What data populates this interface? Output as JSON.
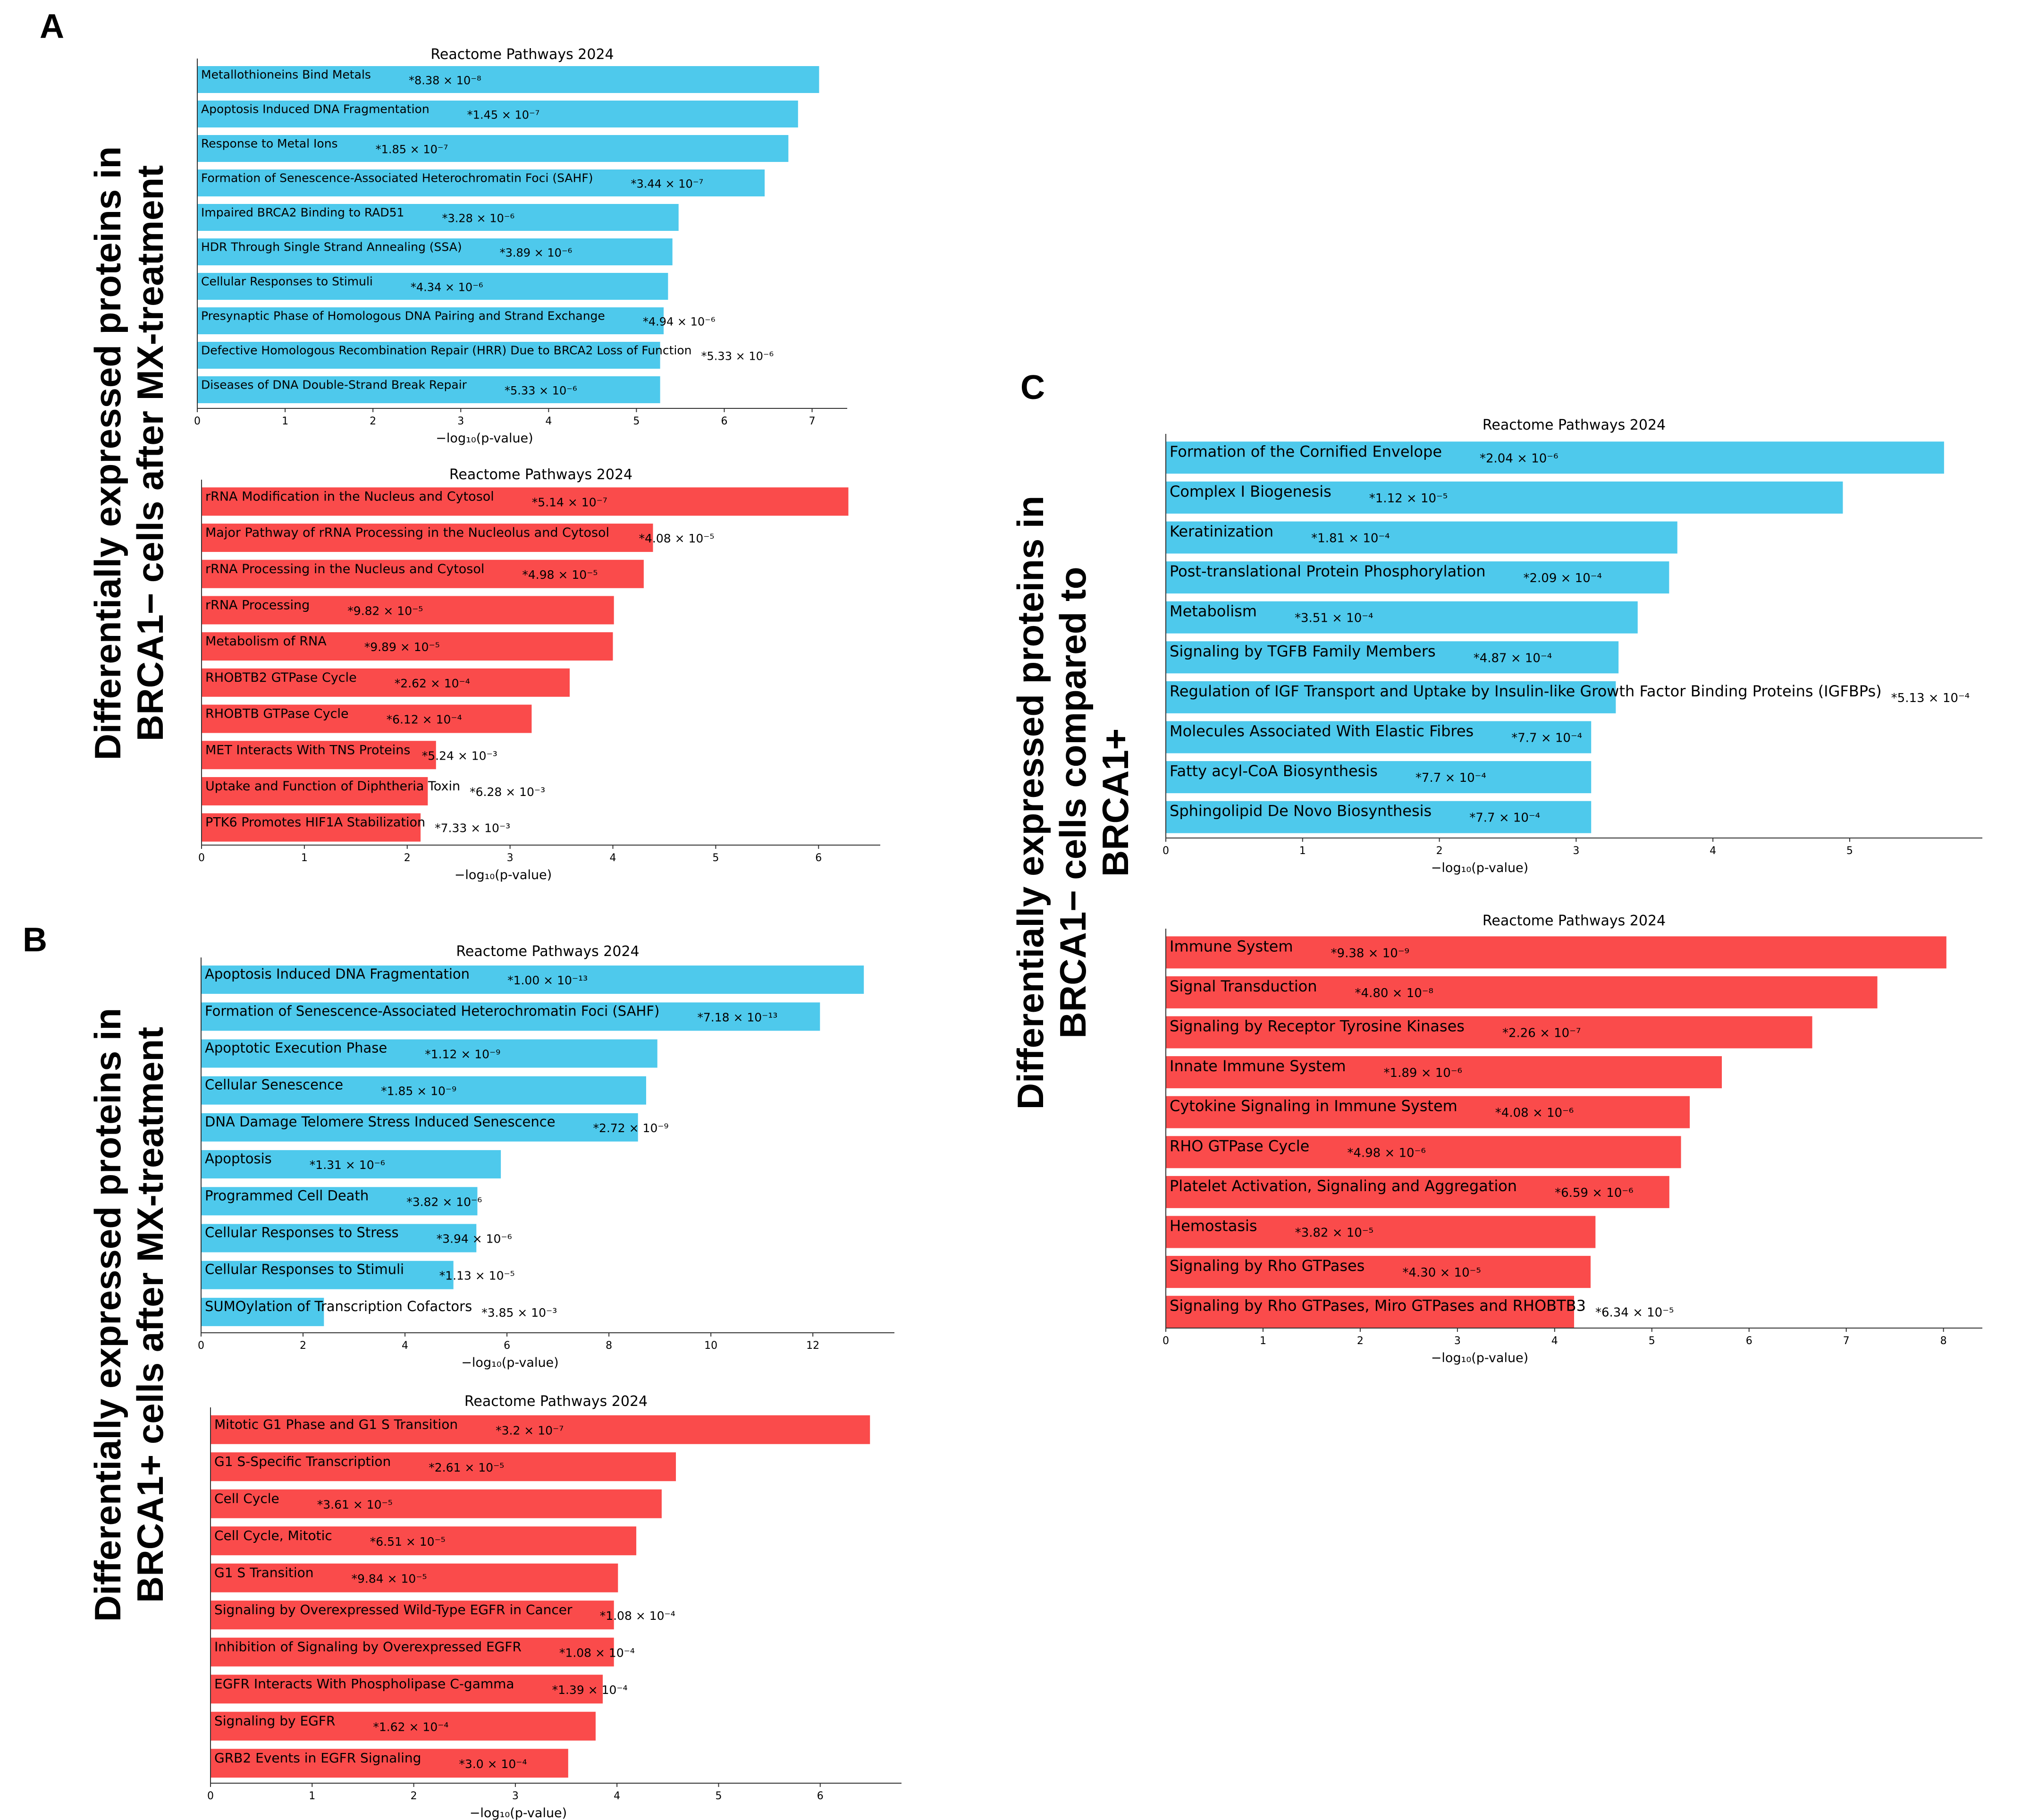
{
  "figure": {
    "panel_labels": [
      "A",
      "B",
      "C"
    ],
    "side_labels": {
      "A": [
        "Differentially expressed proteins in",
        "BRCA1− cells after MX-treatment"
      ],
      "B": [
        "Differentially expressed proteins in",
        "BRCA1+ cells after MX-treatment"
      ],
      "C": [
        "Differentially expressed proteins in",
        "BRCA1− cells compared to",
        "BRCA1+"
      ]
    }
  },
  "colors": {
    "up": "#4ec9ec",
    "down": "#fa4b4b",
    "axis": "#333333"
  },
  "chart_data": [
    {
      "id": "A-up",
      "type": "bar",
      "orientation": "horizontal",
      "title": "Reactome Pathways 2024",
      "xlabel": "−log₁₀(p-value)",
      "xlim": [
        0,
        7.4
      ],
      "xticks": [
        0,
        1,
        2,
        3,
        4,
        5,
        6,
        7
      ],
      "color": "up",
      "categories": [
        "Metallothioneins Bind Metals",
        "Apoptosis Induced DNA Fragmentation",
        "Response to Metal Ions",
        "Formation of Senescence-Associated Heterochromatin Foci (SAHF)",
        "Impaired BRCA2 Binding to RAD51",
        "HDR Through Single Strand Annealing (SSA)",
        "Cellular Responses to Stimuli",
        "Presynaptic Phase of Homologous DNA Pairing and Strand Exchange",
        "Defective Homologous Recombination Repair (HRR) Due to BRCA2 Loss of Function",
        "Diseases of DNA Double-Strand Break Repair"
      ],
      "values": [
        7.08,
        6.84,
        6.73,
        6.46,
        5.48,
        5.41,
        5.36,
        5.31,
        5.27,
        5.27
      ],
      "pvalues": [
        "*8.38 × 10⁻⁸",
        "*1.45 × 10⁻⁷",
        "*1.85 × 10⁻⁷",
        "*3.44 × 10⁻⁷",
        "*3.28 × 10⁻⁶",
        "*3.89 × 10⁻⁶",
        "*4.34 × 10⁻⁶",
        "*4.94 × 10⁻⁶",
        "*5.33 × 10⁻⁶",
        "*5.33 × 10⁻⁶"
      ]
    },
    {
      "id": "A-down",
      "type": "bar",
      "orientation": "horizontal",
      "title": "Reactome Pathways 2024",
      "xlabel": "−log₁₀(p-value)",
      "xlim": [
        0,
        6.6
      ],
      "xticks": [
        0,
        1,
        2,
        3,
        4,
        5,
        6
      ],
      "color": "down",
      "categories": [
        "rRNA Modification in the Nucleus and Cytosol",
        "Major Pathway of rRNA Processing in the Nucleolus and Cytosol",
        "rRNA Processing in the Nucleus and Cytosol",
        "rRNA Processing",
        "Metabolism of RNA",
        "RHOBTB2 GTPase Cycle",
        "RHOBTB GTPase Cycle",
        "MET Interacts With TNS Proteins",
        "Uptake and Function of Diphtheria Toxin",
        "PTK6 Promotes HIF1A Stabilization"
      ],
      "values": [
        6.29,
        4.39,
        4.3,
        4.01,
        4.0,
        3.58,
        3.21,
        2.28,
        2.2,
        2.13
      ],
      "pvalues": [
        "*5.14 × 10⁻⁷",
        "*4.08 × 10⁻⁵",
        "*4.98 × 10⁻⁵",
        "*9.82 × 10⁻⁵",
        "*9.89 × 10⁻⁵",
        "*2.62 × 10⁻⁴",
        "*6.12 × 10⁻⁴",
        "*5.24 × 10⁻³",
        "*6.28 × 10⁻³",
        "*7.33 × 10⁻³"
      ]
    },
    {
      "id": "B-up",
      "type": "bar",
      "orientation": "horizontal",
      "title": "Reactome Pathways 2024",
      "xlabel": "−log₁₀(p-value)",
      "xlim": [
        0,
        13.6
      ],
      "xticks": [
        0,
        2,
        4,
        6,
        8,
        10,
        12
      ],
      "color": "up",
      "categories": [
        "Apoptosis Induced DNA Fragmentation",
        "Formation of Senescence-Associated Heterochromatin Foci (SAHF)",
        "Apoptotic Execution Phase",
        "Cellular Senescence",
        "DNA Damage Telomere Stress Induced Senescence",
        "Apoptosis",
        "Programmed Cell Death",
        "Cellular Responses to Stress",
        "Cellular Responses to Stimuli",
        "SUMOylation of Transcription Cofactors"
      ],
      "values": [
        13.0,
        12.14,
        8.95,
        8.73,
        8.57,
        5.88,
        5.42,
        5.4,
        4.95,
        2.41
      ],
      "pvalues": [
        "*1.00 × 10⁻¹³",
        "*7.18 × 10⁻¹³",
        "*1.12 × 10⁻⁹",
        "*1.85 × 10⁻⁹",
        "*2.72 × 10⁻⁹",
        "*1.31 × 10⁻⁶",
        "*3.82 × 10⁻⁶",
        "*3.94 × 10⁻⁶",
        "*1.13 × 10⁻⁵",
        "*3.85 × 10⁻³"
      ]
    },
    {
      "id": "B-down",
      "type": "bar",
      "orientation": "horizontal",
      "title": "Reactome Pathways 2024",
      "xlabel": "−log₁₀(p-value)",
      "xlim": [
        0,
        6.8
      ],
      "xticks": [
        0,
        1,
        2,
        3,
        4,
        5,
        6
      ],
      "color": "down",
      "categories": [
        "Mitotic G1 Phase and G1 S Transition",
        "G1 S-Specific Transcription",
        "Cell Cycle",
        "Cell Cycle, Mitotic",
        "G1 S Transition",
        "Signaling by Overexpressed Wild-Type EGFR in Cancer",
        "Inhibition of Signaling by Overexpressed EGFR",
        "EGFR Interacts With Phospholipase C-gamma",
        "Signaling by EGFR",
        "GRB2 Events in EGFR Signaling"
      ],
      "values": [
        6.49,
        4.58,
        4.44,
        4.19,
        4.01,
        3.97,
        3.97,
        3.86,
        3.79,
        3.52
      ],
      "pvalues": [
        "*3.2 × 10⁻⁷",
        "*2.61 × 10⁻⁵",
        "*3.61 × 10⁻⁵",
        "*6.51 × 10⁻⁵",
        "*9.84 × 10⁻⁵",
        "*1.08 × 10⁻⁴",
        "*1.08 × 10⁻⁴",
        "*1.39 × 10⁻⁴",
        "*1.62 × 10⁻⁴",
        "*3.0 × 10⁻⁴"
      ]
    },
    {
      "id": "C-up",
      "type": "bar",
      "orientation": "horizontal",
      "title": "Reactome Pathways 2024",
      "xlabel": "−log₁₀(p-value)",
      "xlim": [
        0,
        5.97
      ],
      "xticks": [
        0,
        1,
        2,
        3,
        4,
        5
      ],
      "color": "up",
      "categories": [
        "Formation of the Cornified Envelope",
        "Complex I Biogenesis",
        "Keratinization",
        "Post-translational Protein Phosphorylation",
        "Metabolism",
        "Signaling by TGFB Family Members",
        "Regulation of IGF Transport and Uptake by Insulin-like Growth Factor Binding Proteins (IGFBPs)",
        "Molecules Associated With Elastic Fibres",
        "Fatty acyl-CoA Biosynthesis",
        "Sphingolipid De Novo Biosynthesis"
      ],
      "values": [
        5.69,
        4.95,
        3.74,
        3.68,
        3.45,
        3.31,
        3.29,
        3.11,
        3.11,
        3.11
      ],
      "pvalues": [
        "*2.04 × 10⁻⁶",
        "*1.12 × 10⁻⁵",
        "*1.81 × 10⁻⁴",
        "*2.09 × 10⁻⁴",
        "*3.51 × 10⁻⁴",
        "*4.87 × 10⁻⁴",
        "*5.13 × 10⁻⁴",
        "*7.7 × 10⁻⁴",
        "*7.7 × 10⁻⁴",
        "*7.7 × 10⁻⁴"
      ]
    },
    {
      "id": "C-down",
      "type": "bar",
      "orientation": "horizontal",
      "title": "Reactome Pathways 2024",
      "xlabel": "−log₁₀(p-value)",
      "xlim": [
        0,
        8.4
      ],
      "xticks": [
        0,
        1,
        2,
        3,
        4,
        5,
        6,
        7,
        8
      ],
      "color": "down",
      "categories": [
        "Immune System",
        "Signal Transduction",
        "Signaling by Receptor Tyrosine Kinases",
        "Innate Immune System",
        "Cytokine Signaling in Immune System",
        "RHO GTPase Cycle",
        "Platelet Activation, Signaling and Aggregation",
        "Hemostasis",
        "Signaling by Rho GTPases",
        "Signaling by Rho GTPases, Miro GTPases and RHOBTB3"
      ],
      "values": [
        8.03,
        7.32,
        6.65,
        5.72,
        5.39,
        5.3,
        5.18,
        4.42,
        4.37,
        4.2
      ],
      "pvalues": [
        "*9.38 × 10⁻⁹",
        "*4.80 × 10⁻⁸",
        "*2.26 × 10⁻⁷",
        "*1.89 × 10⁻⁶",
        "*4.08 × 10⁻⁶",
        "*4.98 × 10⁻⁶",
        "*6.59 × 10⁻⁶",
        "*3.82 × 10⁻⁵",
        "*4.30 × 10⁻⁵",
        "*6.34 × 10⁻⁵"
      ]
    }
  ]
}
